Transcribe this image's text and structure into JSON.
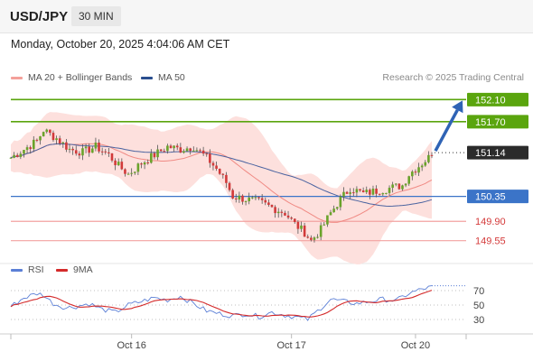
{
  "header": {
    "symbol": "USD/JPY",
    "timeframe": "30 MIN",
    "datetime": "Monday, October 20, 2025 4:04:06 AM CET"
  },
  "legend": {
    "ma20": {
      "label": "MA 20 + Bollinger Bands",
      "color": "#f08a84"
    },
    "ma50": {
      "label": "MA 50",
      "color": "#2a4f8f"
    },
    "credit": "Research © 2025 Trading Central"
  },
  "rsi_legend": {
    "rsi": {
      "label": "RSI",
      "color": "#5b7fd6"
    },
    "ma9": {
      "label": "9MA",
      "color": "#d42a2a"
    }
  },
  "chart_data": [
    {
      "type": "candlestick",
      "symbol": "USD/JPY",
      "timeframe": "30 MIN",
      "x_ticks": [
        "Oct 16",
        "Oct 17",
        "Oct 20"
      ],
      "price_range": [
        149.3,
        152.35
      ],
      "last_price": 151.14,
      "levels": [
        {
          "value": 152.1,
          "label": "152.10",
          "kind": "resistance"
        },
        {
          "value": 151.7,
          "label": "151.70",
          "kind": "resistance"
        },
        {
          "value": 150.35,
          "label": "150.35",
          "kind": "pivot"
        },
        {
          "value": 149.9,
          "label": "149.90",
          "kind": "support"
        },
        {
          "value": 149.55,
          "label": "149.55",
          "kind": "support"
        }
      ],
      "last_label": "151.14",
      "projection": {
        "from": 151.14,
        "to": 152.1,
        "direction": "up"
      },
      "close_path": [
        [
          0,
          151.05
        ],
        [
          4,
          151.2
        ],
        [
          8,
          151.35
        ],
        [
          10,
          151.55
        ],
        [
          14,
          151.4
        ],
        [
          18,
          151.2
        ],
        [
          22,
          151.15
        ],
        [
          26,
          151.25
        ],
        [
          30,
          151.1
        ],
        [
          33,
          150.9
        ],
        [
          36,
          150.75
        ],
        [
          40,
          150.95
        ],
        [
          44,
          151.1
        ],
        [
          48,
          151.25
        ],
        [
          52,
          151.2
        ],
        [
          56,
          151.25
        ],
        [
          60,
          151.05
        ],
        [
          63,
          150.85
        ],
        [
          66,
          150.6
        ],
        [
          68,
          150.35
        ],
        [
          72,
          150.3
        ],
        [
          76,
          150.25
        ],
        [
          80,
          150.15
        ],
        [
          84,
          150.05
        ],
        [
          87,
          149.85
        ],
        [
          90,
          149.7
        ],
        [
          92,
          149.55
        ],
        [
          95,
          149.75
        ],
        [
          98,
          150.05
        ],
        [
          101,
          150.3
        ],
        [
          104,
          150.5
        ],
        [
          108,
          150.4
        ],
        [
          112,
          150.45
        ],
        [
          116,
          150.5
        ],
        [
          120,
          150.55
        ],
        [
          122,
          150.75
        ],
        [
          124,
          150.85
        ],
        [
          126,
          150.95
        ],
        [
          128,
          151.05
        ],
        [
          129,
          151.14
        ]
      ],
      "candle_count": 130
    },
    {
      "type": "line",
      "name": "RSI",
      "series": [
        {
          "name": "RSI"
        },
        {
          "name": "9MA"
        }
      ],
      "y_ticks": [
        70,
        50,
        30
      ],
      "ylim": [
        15,
        85
      ],
      "rsi_path": [
        [
          0,
          48
        ],
        [
          4,
          60
        ],
        [
          8,
          66
        ],
        [
          10,
          64
        ],
        [
          13,
          52
        ],
        [
          17,
          46
        ],
        [
          20,
          48
        ],
        [
          24,
          52
        ],
        [
          28,
          44
        ],
        [
          32,
          40
        ],
        [
          36,
          50
        ],
        [
          40,
          55
        ],
        [
          44,
          60
        ],
        [
          48,
          57
        ],
        [
          52,
          62
        ],
        [
          56,
          52
        ],
        [
          60,
          42
        ],
        [
          64,
          38
        ],
        [
          68,
          35
        ],
        [
          72,
          38
        ],
        [
          76,
          34
        ],
        [
          80,
          40
        ],
        [
          84,
          36
        ],
        [
          88,
          33
        ],
        [
          91,
          30
        ],
        [
          94,
          42
        ],
        [
          98,
          58
        ],
        [
          102,
          55
        ],
        [
          106,
          52
        ],
        [
          110,
          55
        ],
        [
          114,
          58
        ],
        [
          118,
          56
        ],
        [
          122,
          66
        ],
        [
          126,
          72
        ],
        [
          129,
          75
        ]
      ]
    }
  ]
}
